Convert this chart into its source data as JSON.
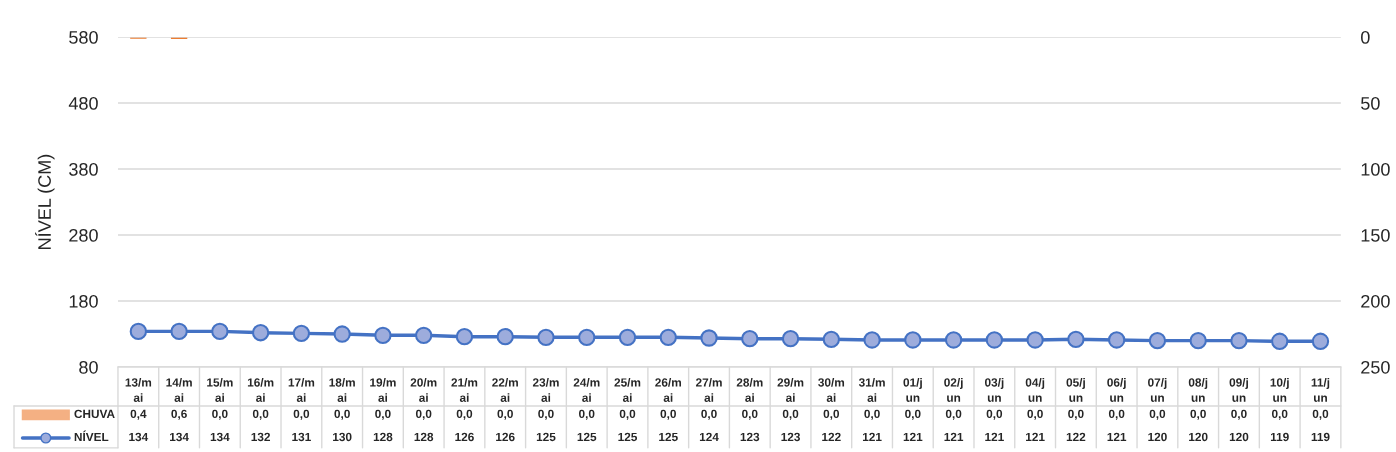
{
  "chart_data": {
    "type": "line",
    "ylabel": "NÍVEL (CM)",
    "categories": [
      "13/mai",
      "14/mai",
      "15/mai",
      "16/mai",
      "17/mai",
      "18/mai",
      "19/mai",
      "20/mai",
      "21/mai",
      "22/mai",
      "23/mai",
      "24/mai",
      "25/mai",
      "26/mai",
      "27/mai",
      "28/mai",
      "29/mai",
      "30/mai",
      "31/mai",
      "01/jun",
      "02/jun",
      "03/jun",
      "04/jun",
      "05/jun",
      "06/jun",
      "07/jun",
      "08/jun",
      "09/jun",
      "10/jun",
      "11/jun"
    ],
    "series": [
      {
        "name": "CHUVA",
        "type": "bar",
        "axis": "y2",
        "color": "#ed7d31",
        "values": [
          0.4,
          0.6,
          0,
          0,
          0,
          0,
          0,
          0,
          0,
          0,
          0,
          0,
          0,
          0,
          0,
          0,
          0,
          0,
          0,
          0,
          0,
          0,
          0,
          0,
          0,
          0,
          0,
          0,
          0,
          0
        ],
        "value_labels": [
          "0,4",
          "0,6",
          "0,0",
          "0,0",
          "0,0",
          "0,0",
          "0,0",
          "0,0",
          "0,0",
          "0,0",
          "0,0",
          "0,0",
          "0,0",
          "0,0",
          "0,0",
          "0,0",
          "0,0",
          "0,0",
          "0,0",
          "0,0",
          "0,0",
          "0,0",
          "0,0",
          "0,0",
          "0,0",
          "0,0",
          "0,0",
          "0,0",
          "0,0",
          "0,0"
        ]
      },
      {
        "name": "NÍVEL",
        "color": "#4472c4",
        "marker": "circle",
        "values": [
          134,
          134,
          134,
          132,
          131,
          130,
          128,
          128,
          126,
          126,
          125,
          125,
          125,
          125,
          124,
          123,
          123,
          122,
          121,
          121,
          121,
          121,
          121,
          122,
          121,
          120,
          120,
          120,
          119,
          119
        ],
        "value_labels": [
          "134",
          "134",
          "134",
          "132",
          "131",
          "130",
          "128",
          "128",
          "126",
          "126",
          "125",
          "125",
          "125",
          "125",
          "124",
          "123",
          "123",
          "122",
          "121",
          "121",
          "121",
          "121",
          "121",
          "122",
          "121",
          "120",
          "120",
          "120",
          "119",
          "119"
        ]
      }
    ],
    "ylim": [
      80,
      580
    ],
    "yticks": [
      80,
      180,
      280,
      380,
      480,
      580
    ],
    "y2lim": [
      250,
      0
    ],
    "y2ticks": [
      0,
      50,
      100,
      150,
      200,
      250
    ],
    "grid": "y",
    "legend": "bottom"
  }
}
